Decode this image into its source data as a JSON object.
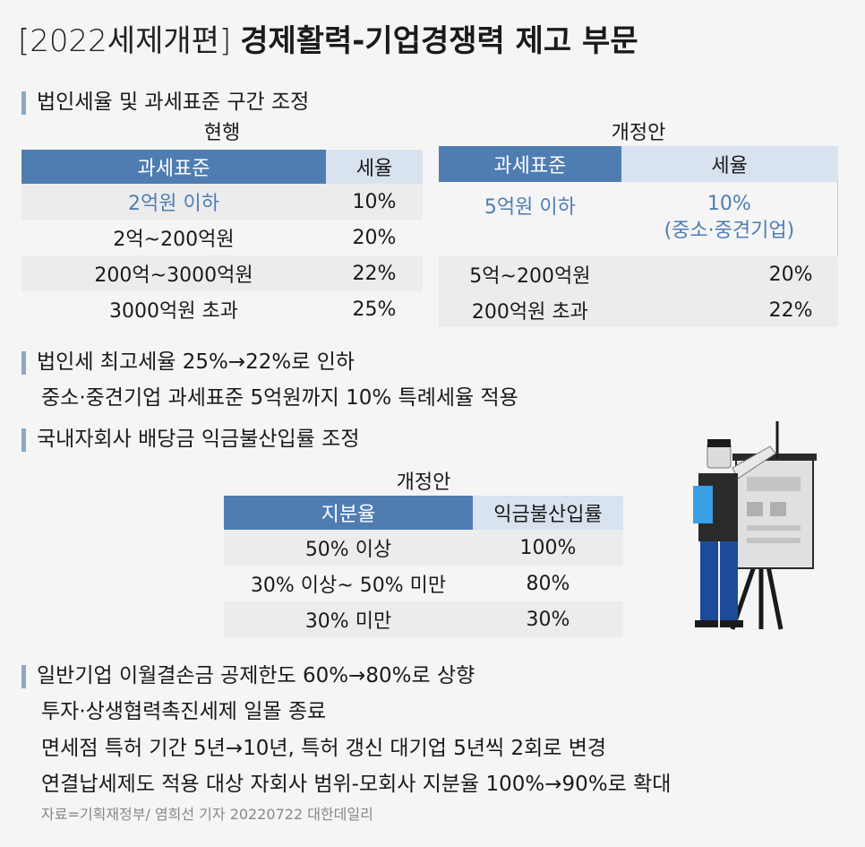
{
  "title": {
    "bracket": "[2022세제개편]",
    "main": "경제활력-기업경쟁력 제고 부문"
  },
  "section1": {
    "heading": "법인세율 및 과세표준 구간 조정",
    "current": {
      "caption": "현행",
      "headers": [
        "과세표준",
        "세율"
      ],
      "rows": [
        [
          "2억원 이하",
          "10%"
        ],
        [
          "2억~200억원",
          "20%"
        ],
        [
          "200억~3000억원",
          "22%"
        ],
        [
          "3000억원 초과",
          "25%"
        ]
      ]
    },
    "proposal": {
      "caption": "개정안",
      "headers": [
        "과세표준",
        "세율"
      ],
      "rows": [
        [
          "5억원 이하",
          "10%",
          "(중소·중견기업)"
        ],
        [
          "5억~200억원",
          "20%"
        ],
        [
          "200억원 초과",
          "22%"
        ]
      ]
    }
  },
  "bullets1": {
    "line1": "법인세 최고세율 25%→22%로 인하",
    "line2": "중소·중견기업 과세표준 5억원까지 10% 특례세율 적용"
  },
  "section2": {
    "heading": "국내자회사 배당금 익금불산입률 조정",
    "caption": "개정안",
    "headers": [
      "지분율",
      "익금불산입률"
    ],
    "rows": [
      [
        "50% 이상",
        "100%"
      ],
      [
        "30% 이상~ 50% 미만",
        "80%"
      ],
      [
        "30% 미만",
        "30%"
      ]
    ]
  },
  "bullets2": {
    "line1": "일반기업 이월결손금 공제한도 60%→80%로 상향",
    "line2": "투자·상생협력촉진세제 일몰 종료",
    "line3": "면세점 특허 기간 5년→10년, 특허 갱신 대기업 5년씩 2회로 변경",
    "line4": "연결납세제도 적용 대상 자회사 범위-모회사 지분율 100%→90%로 확대"
  },
  "source": "자료=기획재정부/ 염희선 기자 20220722 대한데일리",
  "colors": {
    "accent": "#4f7db2",
    "accent_light": "#d9e3ef",
    "bar": "#8fa7c4"
  },
  "illustration": "presenter-with-chart-board"
}
